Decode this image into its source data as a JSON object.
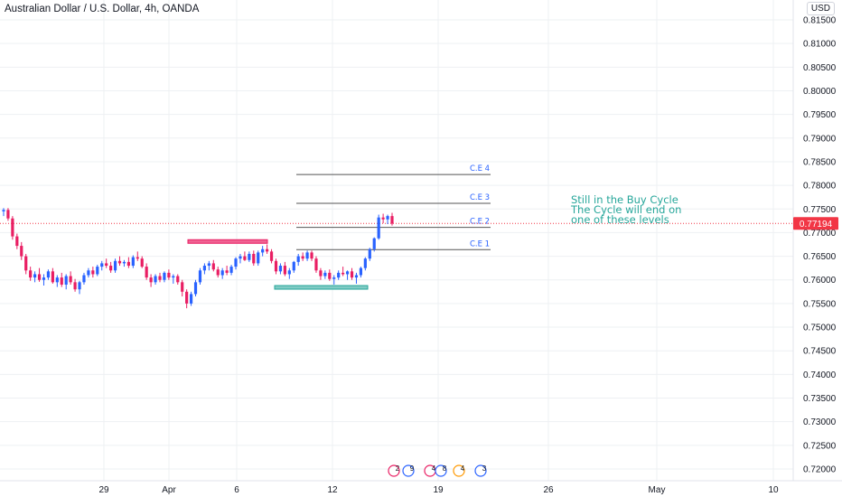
{
  "header": {
    "title": "Australian Dollar / U.S. Dollar, 4h, OANDA",
    "currency": "USD"
  },
  "note": {
    "lines": [
      "Still in the Buy Cycle",
      "The Cycle will end on",
      "one of these levels"
    ]
  },
  "colors": {
    "up": "#2962ff",
    "down": "#e91e63",
    "note": "#26a69a",
    "level_line": "#555555",
    "level_label": "#2962ff",
    "price_tag": "#f23645",
    "resistance_box": "#f06292",
    "support_box": "#80cbc4",
    "grid": "#eef0f3"
  },
  "event_markers": [
    "2",
    "9",
    "4",
    "8",
    "4",
    "3"
  ],
  "chart_data": {
    "type": "candlestick",
    "title": "Australian Dollar / U.S. Dollar, 4h, OANDA",
    "yaxis": {
      "ticks": [
        "0.81500",
        "0.81000",
        "0.80500",
        "0.80000",
        "0.79500",
        "0.79000",
        "0.78500",
        "0.78000",
        "0.77500",
        "0.77000",
        "0.76500",
        "0.76000",
        "0.75500",
        "0.75000",
        "0.74500",
        "0.74000",
        "0.73500",
        "0.73000",
        "0.72500",
        "0.72000"
      ],
      "range": [
        0.7185,
        0.8185
      ],
      "side": "right"
    },
    "xaxis": {
      "ticks": [
        "29",
        "Apr",
        "6",
        "12",
        "19",
        "26",
        "May",
        "10"
      ]
    },
    "current_price": "0.77194",
    "levels": [
      {
        "label": "C.E 4",
        "value": 0.7823
      },
      {
        "label": "C.E 3",
        "value": 0.7762
      },
      {
        "label": "C.E 2",
        "value": 0.7711
      },
      {
        "label": "C.E 1",
        "value": 0.7664
      }
    ],
    "zones": [
      {
        "name": "resistance",
        "low": 0.7678,
        "high": 0.7685
      },
      {
        "name": "support",
        "low": 0.7581,
        "high": 0.7588
      }
    ],
    "candles": [
      [
        0.7745,
        0.7752,
        0.7735,
        0.7748
      ],
      [
        0.7748,
        0.7752,
        0.7725,
        0.773
      ],
      [
        0.773,
        0.7735,
        0.7685,
        0.7692
      ],
      [
        0.7692,
        0.7698,
        0.7665,
        0.7672
      ],
      [
        0.7672,
        0.768,
        0.7642,
        0.765
      ],
      [
        0.765,
        0.7655,
        0.7612,
        0.762
      ],
      [
        0.762,
        0.7628,
        0.7598,
        0.7605
      ],
      [
        0.7605,
        0.7618,
        0.7595,
        0.7612
      ],
      [
        0.7612,
        0.7625,
        0.7596,
        0.76
      ],
      [
        0.76,
        0.7612,
        0.7588,
        0.7605
      ],
      [
        0.7605,
        0.7622,
        0.76,
        0.7618
      ],
      [
        0.7618,
        0.7625,
        0.7592,
        0.7595
      ],
      [
        0.7595,
        0.761,
        0.7585,
        0.7605
      ],
      [
        0.7605,
        0.7615,
        0.7585,
        0.759
      ],
      [
        0.759,
        0.7612,
        0.758,
        0.7608
      ],
      [
        0.7608,
        0.7618,
        0.759,
        0.7595
      ],
      [
        0.7595,
        0.7602,
        0.7575,
        0.758
      ],
      [
        0.758,
        0.7598,
        0.757,
        0.7595
      ],
      [
        0.7595,
        0.7615,
        0.759,
        0.761
      ],
      [
        0.761,
        0.7625,
        0.7605,
        0.762
      ],
      [
        0.762,
        0.7628,
        0.7605,
        0.7612
      ],
      [
        0.7612,
        0.7632,
        0.7608,
        0.7628
      ],
      [
        0.7628,
        0.764,
        0.762,
        0.7635
      ],
      [
        0.7635,
        0.7645,
        0.7625,
        0.763
      ],
      [
        0.763,
        0.7638,
        0.7615,
        0.762
      ],
      [
        0.762,
        0.7645,
        0.7615,
        0.764
      ],
      [
        0.764,
        0.765,
        0.763,
        0.7635
      ],
      [
        0.7635,
        0.7642,
        0.7628,
        0.7638
      ],
      [
        0.7638,
        0.7648,
        0.7625,
        0.763
      ],
      [
        0.763,
        0.7652,
        0.7625,
        0.7648
      ],
      [
        0.7648,
        0.766,
        0.764,
        0.7645
      ],
      [
        0.7645,
        0.765,
        0.7625,
        0.7628
      ],
      [
        0.7628,
        0.7635,
        0.76,
        0.7605
      ],
      [
        0.7605,
        0.7612,
        0.7585,
        0.7595
      ],
      [
        0.7595,
        0.7612,
        0.759,
        0.7608
      ],
      [
        0.7608,
        0.7615,
        0.7595,
        0.76
      ],
      [
        0.76,
        0.7618,
        0.7595,
        0.7615
      ],
      [
        0.7615,
        0.7622,
        0.76,
        0.7605
      ],
      [
        0.7605,
        0.7612,
        0.7592,
        0.7608
      ],
      [
        0.7608,
        0.7612,
        0.759,
        0.7595
      ],
      [
        0.7595,
        0.76,
        0.7565,
        0.7575
      ],
      [
        0.7575,
        0.758,
        0.754,
        0.755
      ],
      [
        0.755,
        0.7575,
        0.7545,
        0.757
      ],
      [
        0.757,
        0.76,
        0.7565,
        0.7595
      ],
      [
        0.7595,
        0.7625,
        0.759,
        0.762
      ],
      [
        0.762,
        0.7635,
        0.7612,
        0.763
      ],
      [
        0.763,
        0.764,
        0.762,
        0.7635
      ],
      [
        0.7635,
        0.7642,
        0.7618,
        0.7622
      ],
      [
        0.7622,
        0.7628,
        0.7605,
        0.761
      ],
      [
        0.761,
        0.7625,
        0.7602,
        0.762
      ],
      [
        0.762,
        0.763,
        0.761,
        0.7615
      ],
      [
        0.7615,
        0.7632,
        0.761,
        0.7628
      ],
      [
        0.7628,
        0.7648,
        0.7622,
        0.7645
      ],
      [
        0.7645,
        0.7655,
        0.7635,
        0.765
      ],
      [
        0.765,
        0.766,
        0.764,
        0.7642
      ],
      [
        0.7642,
        0.766,
        0.7638,
        0.7655
      ],
      [
        0.7655,
        0.7662,
        0.763,
        0.7635
      ],
      [
        0.7635,
        0.7662,
        0.763,
        0.7658
      ],
      [
        0.7658,
        0.7672,
        0.765,
        0.7665
      ],
      [
        0.7665,
        0.7675,
        0.7655,
        0.766
      ],
      [
        0.766,
        0.7665,
        0.7635,
        0.764
      ],
      [
        0.764,
        0.7645,
        0.7612,
        0.7618
      ],
      [
        0.7618,
        0.7635,
        0.7612,
        0.763
      ],
      [
        0.763,
        0.7638,
        0.7608,
        0.7612
      ],
      [
        0.7612,
        0.7625,
        0.7602,
        0.762
      ],
      [
        0.762,
        0.764,
        0.7615,
        0.7638
      ],
      [
        0.7638,
        0.7655,
        0.763,
        0.765
      ],
      [
        0.765,
        0.7658,
        0.764,
        0.7645
      ],
      [
        0.7645,
        0.7662,
        0.764,
        0.7658
      ],
      [
        0.7658,
        0.7662,
        0.764,
        0.7645
      ],
      [
        0.7645,
        0.765,
        0.7615,
        0.762
      ],
      [
        0.762,
        0.7625,
        0.76,
        0.7608
      ],
      [
        0.7608,
        0.762,
        0.7602,
        0.7615
      ],
      [
        0.7615,
        0.7622,
        0.7598,
        0.7602
      ],
      [
        0.7602,
        0.761,
        0.759,
        0.7605
      ],
      [
        0.7605,
        0.762,
        0.76,
        0.7615
      ],
      [
        0.7615,
        0.7628,
        0.7608,
        0.7612
      ],
      [
        0.7612,
        0.762,
        0.76,
        0.7618
      ],
      [
        0.7618,
        0.7625,
        0.76,
        0.7605
      ],
      [
        0.7605,
        0.7615,
        0.7592,
        0.761
      ],
      [
        0.761,
        0.7628,
        0.7605,
        0.7625
      ],
      [
        0.7625,
        0.7648,
        0.762,
        0.7645
      ],
      [
        0.7645,
        0.7668,
        0.764,
        0.7665
      ],
      [
        0.7665,
        0.769,
        0.766,
        0.7688
      ],
      [
        0.7688,
        0.7738,
        0.7685,
        0.7732
      ],
      [
        0.7732,
        0.774,
        0.772,
        0.7728
      ],
      [
        0.7728,
        0.7738,
        0.7718,
        0.7735
      ],
      [
        0.7735,
        0.7742,
        0.7715,
        0.7719
      ]
    ]
  }
}
